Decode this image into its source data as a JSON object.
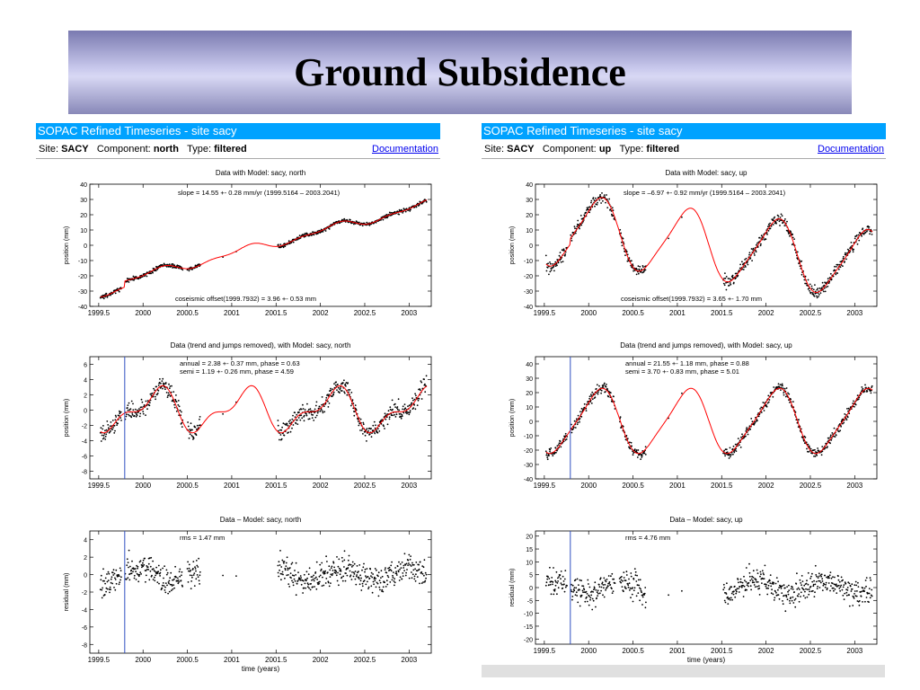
{
  "slide": {
    "title": "Ground Subsidence"
  },
  "panels": [
    {
      "header": "SOPAC Refined Timeseries - site sacy",
      "site_label": "Site:",
      "site_value": "SACY",
      "component_label": "Component:",
      "component_value": "north",
      "type_label": "Type:",
      "type_value": "filtered",
      "doc_link": "Documentation"
    },
    {
      "header": "SOPAC Refined Timeseries - site sacy",
      "site_label": "Site:",
      "site_value": "SACY",
      "component_label": "Component:",
      "component_value": "up",
      "type_label": "Type:",
      "type_value": "filtered",
      "doc_link": "Documentation"
    }
  ],
  "colors": {
    "header_bg": "#00a2ff",
    "model_line": "#ff0000",
    "marker_line": "#3050c0",
    "points": "#000000"
  },
  "chart_data": [
    {
      "type": "scatter",
      "component": "north",
      "title": "Data with Model:  sacy,  north",
      "ylabel": "position (mm)",
      "xlabel": "",
      "xlim": [
        1999.4,
        2003.25
      ],
      "ylim": [
        -40,
        40
      ],
      "xticks": [
        "1999.5",
        "2000",
        "2000.5",
        "2001",
        "2001.5",
        "2002",
        "2002.5",
        "2003"
      ],
      "yticks": [
        "40",
        "30",
        "20",
        "10",
        "0",
        "-10",
        "-20",
        "-30",
        "-40"
      ],
      "annotations": [
        "slope =  14.55 +-   0.28 mm/yr (1999.5164 – 2003.2041)",
        "coseismic offset(1999.7932) =   3.96 +-   0.53 mm"
      ],
      "marker_x": null,
      "segments": [
        [
          1999.52,
          1999.76
        ],
        [
          1999.8,
          2000.45
        ],
        [
          2000.5,
          2000.65
        ],
        [
          2001.52,
          2003.2
        ]
      ],
      "model_curve": {
        "kind": "trend",
        "a": -31,
        "b": 14.55,
        "t0": 1999.52,
        "jump_t": 1999.7932,
        "jump": 3.96,
        "amp1": 2.38,
        "ph1": 0.63,
        "amp2": 1.19,
        "ph2": 4.59
      },
      "noise": 1.5
    },
    {
      "type": "scatter",
      "component": "north",
      "title": "Data (trend and jumps removed), with Model:  sacy,  north",
      "ylabel": "position (mm)",
      "xlabel": "",
      "xlim": [
        1999.4,
        2003.25
      ],
      "ylim": [
        -9,
        7
      ],
      "xticks": [
        "1999.5",
        "2000",
        "2000.5",
        "2001",
        "2001.5",
        "2002",
        "2002.5",
        "2003"
      ],
      "yticks": [
        "6",
        "4",
        "2",
        "0",
        "-2",
        "-4",
        "-6",
        "-8"
      ],
      "annotations": [
        "annual =   2.38 +-   0.37 mm, phase =   0.63",
        "semi =   1.19 +-   0.26 mm, phase =   4.59"
      ],
      "marker_x": 1999.7932,
      "segments": [
        [
          1999.52,
          1999.76
        ],
        [
          1999.8,
          2000.45
        ],
        [
          2000.5,
          2000.65
        ],
        [
          2001.52,
          2003.2
        ]
      ],
      "model_curve": {
        "kind": "seasonal",
        "amp1": 2.38,
        "ph1": 0.63,
        "amp2": 1.19,
        "ph2": 4.59
      },
      "noise": 1.4
    },
    {
      "type": "scatter",
      "component": "north",
      "title": "Data – Model:  sacy,  north",
      "ylabel": "residual (mm)",
      "xlabel": "time (years)",
      "xlim": [
        1999.4,
        2003.25
      ],
      "ylim": [
        -9,
        5
      ],
      "xticks": [
        "1999.5",
        "2000",
        "2000.5",
        "2001",
        "2001.5",
        "2002",
        "2002.5",
        "2003"
      ],
      "yticks": [
        "4",
        "2",
        "0",
        "-2",
        "-4",
        "-6",
        "-8"
      ],
      "annotations": [
        "rms =   1.47 mm"
      ],
      "marker_x": 1999.7932,
      "segments": [
        [
          1999.52,
          1999.76
        ],
        [
          1999.8,
          2000.45
        ],
        [
          2000.5,
          2000.65
        ],
        [
          2001.52,
          2003.2
        ]
      ],
      "model_curve": null,
      "noise": 1.47
    },
    {
      "type": "scatter",
      "component": "up",
      "title": "Data with Model:  sacy,  up",
      "ylabel": "position (mm)",
      "xlabel": "",
      "xlim": [
        1999.4,
        2003.25
      ],
      "ylim": [
        -40,
        40
      ],
      "xticks": [
        "1999.5",
        "2000",
        "2000.5",
        "2001",
        "2001.5",
        "2002",
        "2002.5",
        "2003"
      ],
      "yticks": [
        "40",
        "30",
        "20",
        "10",
        "0",
        "-10",
        "-20",
        "-30",
        "-40"
      ],
      "annotations": [
        "slope =  –6.97 +-   0.92 mm/yr (1999.5164 – 2003.2041)",
        "coseismic offset(1999.7932) =   3.65 +-   1.70 mm"
      ],
      "marker_x": null,
      "segments": [
        [
          1999.52,
          1999.76
        ],
        [
          1999.8,
          2000.3
        ],
        [
          2000.35,
          2000.65
        ],
        [
          2001.52,
          2003.2
        ]
      ],
      "model_curve": {
        "kind": "trend",
        "a": 9,
        "b": -6.97,
        "t0": 1999.52,
        "jump_t": 1999.7932,
        "jump": 3.65,
        "amp1": 21.55,
        "ph1": 0.88,
        "amp2": 3.7,
        "ph2": 5.01
      },
      "noise": 4.5
    },
    {
      "type": "scatter",
      "component": "up",
      "title": "Data (trend and jumps removed), with Model:  sacy,  up",
      "ylabel": "position (mm)",
      "xlabel": "",
      "xlim": [
        1999.4,
        2003.25
      ],
      "ylim": [
        -40,
        45
      ],
      "xticks": [
        "1999.5",
        "2000",
        "2000.5",
        "2001",
        "2001.5",
        "2002",
        "2002.5",
        "2003"
      ],
      "yticks": [
        "40",
        "30",
        "20",
        "10",
        "0",
        "-10",
        "-20",
        "-30",
        "-40"
      ],
      "annotations": [
        "annual =  21.55 +-   1.18 mm, phase =   0.88",
        "semi =   3.70 +-   0.83 mm, phase =   5.01"
      ],
      "marker_x": 1999.7932,
      "segments": [
        [
          1999.52,
          1999.76
        ],
        [
          1999.8,
          2000.3
        ],
        [
          2000.35,
          2000.65
        ],
        [
          2001.52,
          2003.2
        ]
      ],
      "model_curve": {
        "kind": "seasonal",
        "amp1": 21.55,
        "ph1": 0.88,
        "amp2": 3.7,
        "ph2": 5.01
      },
      "noise": 4.0
    },
    {
      "type": "scatter",
      "component": "up",
      "title": "Data – Model:  sacy,  up",
      "ylabel": "residual (mm)",
      "xlabel": "time (years)",
      "xlim": [
        1999.4,
        2003.25
      ],
      "ylim": [
        -22,
        22
      ],
      "xticks": [
        "1999.5",
        "2000",
        "2000.5",
        "2001",
        "2001.5",
        "2002",
        "2002.5",
        "2003"
      ],
      "yticks": [
        "20",
        "15",
        "10",
        "5",
        "0",
        "-5",
        "-10",
        "-15",
        "-20"
      ],
      "annotations": [
        "rms =   4.76 mm"
      ],
      "marker_x": 1999.7932,
      "segments": [
        [
          1999.52,
          1999.76
        ],
        [
          1999.8,
          2000.3
        ],
        [
          2000.35,
          2000.65
        ],
        [
          2001.52,
          2003.2
        ]
      ],
      "model_curve": null,
      "noise": 4.76
    }
  ]
}
